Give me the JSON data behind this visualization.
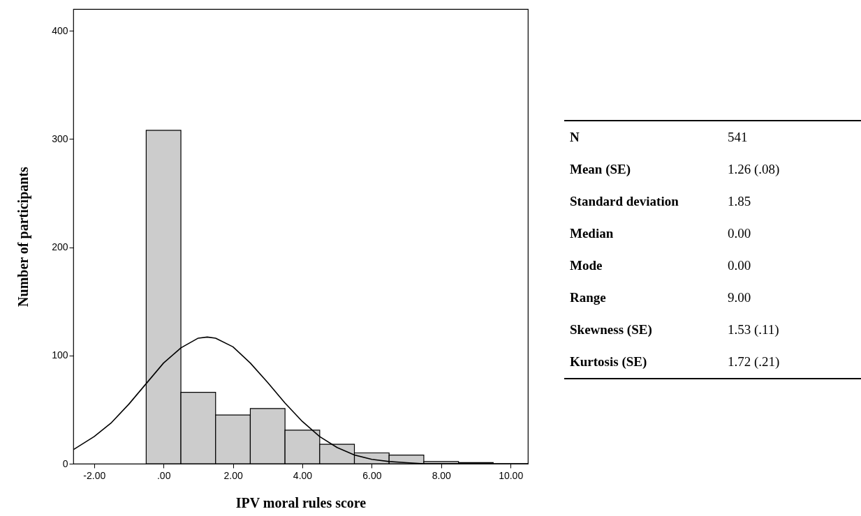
{
  "chart_data": [
    {
      "type": "histogram",
      "xlabel": "IPV moral rules score",
      "ylabel": "Number of participants",
      "bins": [
        -0.5,
        0.5,
        1.5,
        2.5,
        3.5,
        4.5,
        5.5,
        6.5,
        7.5,
        8.5,
        9.5
      ],
      "series": [
        {
          "type": "histogram",
          "color": "#cccccc",
          "values": [
            308,
            66,
            45,
            51,
            31,
            18,
            10,
            8,
            2,
            1
          ]
        },
        {
          "type": "line",
          "color": "#000000",
          "x": [
            -2.6,
            -2,
            -1.5,
            -1,
            -0.5,
            0,
            0.5,
            1,
            1.26,
            1.5,
            2,
            2.5,
            3,
            3.5,
            4,
            4.5,
            5,
            5.5,
            6,
            6.5,
            7,
            7.5,
            8,
            9,
            10,
            10.5
          ],
          "values": [
            13,
            25,
            38,
            55,
            74,
            93,
            107,
            116,
            117,
            116,
            108,
            93,
            75,
            56,
            39,
            25,
            15,
            8,
            4,
            2,
            1,
            0,
            0,
            0,
            0,
            0
          ]
        }
      ],
      "xlim": [
        -2.6,
        10.5
      ],
      "ylim": [
        0,
        420
      ],
      "xticks": [
        {
          "value": -2,
          "label": "-2.00"
        },
        {
          "value": 0,
          "label": ".00"
        },
        {
          "value": 2,
          "label": "2.00"
        },
        {
          "value": 4,
          "label": "4.00"
        },
        {
          "value": 6,
          "label": "6.00"
        },
        {
          "value": 8,
          "label": "8.00"
        },
        {
          "value": 10,
          "label": "10.00"
        }
      ],
      "yticks": [
        0,
        100,
        200,
        300,
        400
      ]
    },
    {
      "type": "other",
      "categories": [
        "N",
        "Mean (SE)",
        "Standard deviation",
        "Median",
        "Mode",
        "Range",
        "Skewness (SE)",
        "Kurtosis (SE)"
      ],
      "value_labels": [
        "541",
        "1.26 (.08)",
        "1.85",
        "0.00",
        "0.00",
        "9.00",
        "1.53 (.11)",
        "1.72 (.21)"
      ]
    }
  ]
}
